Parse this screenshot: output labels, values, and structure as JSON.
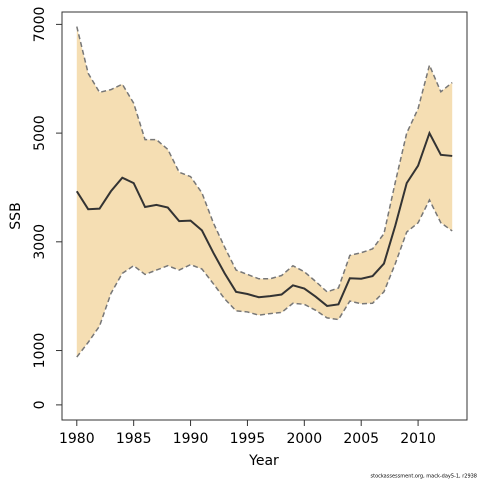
{
  "chart_data": {
    "type": "line",
    "xlabel": "Year",
    "ylabel": "SSB",
    "footnote": "stockassessment.org, mack-day5-1, r2938",
    "x": [
      1980,
      1981,
      1982,
      1983,
      1984,
      1985,
      1986,
      1987,
      1988,
      1989,
      1990,
      1991,
      1992,
      1993,
      1994,
      1995,
      1996,
      1997,
      1998,
      1999,
      2000,
      2001,
      2002,
      2003,
      2004,
      2005,
      2006,
      2007,
      2008,
      2009,
      2010,
      2011,
      2012,
      2013
    ],
    "values": [
      3930,
      3600,
      3610,
      3930,
      4180,
      4080,
      3640,
      3680,
      3630,
      3380,
      3390,
      3210,
      2800,
      2420,
      2080,
      2040,
      1980,
      2000,
      2030,
      2200,
      2140,
      1990,
      1820,
      1850,
      2330,
      2320,
      2370,
      2600,
      3300,
      4080,
      4400,
      5000,
      4600,
      4580
    ],
    "upper": [
      6960,
      6100,
      5750,
      5800,
      5900,
      5550,
      4880,
      4880,
      4700,
      4280,
      4200,
      3900,
      3350,
      2900,
      2480,
      2400,
      2320,
      2320,
      2380,
      2560,
      2450,
      2270,
      2080,
      2150,
      2750,
      2800,
      2870,
      3150,
      4100,
      5000,
      5450,
      6250,
      5760,
      5930
    ],
    "lower": [
      880,
      1150,
      1450,
      2050,
      2420,
      2560,
      2400,
      2480,
      2560,
      2480,
      2580,
      2500,
      2230,
      1950,
      1730,
      1710,
      1650,
      1680,
      1700,
      1870,
      1850,
      1740,
      1600,
      1570,
      1910,
      1860,
      1870,
      2080,
      2600,
      3180,
      3350,
      3770,
      3350,
      3200
    ],
    "color": "#333333",
    "band_color": "#f5deb3",
    "bound_color": "#777777",
    "xlim": [
      1978.7,
      2014.3
    ],
    "ylim": [
      -278,
      7228
    ],
    "xticks": [
      1980,
      1985,
      1990,
      1995,
      2000,
      2005,
      2010
    ],
    "yticks": [
      0,
      1000,
      3000,
      5000,
      7000
    ]
  }
}
